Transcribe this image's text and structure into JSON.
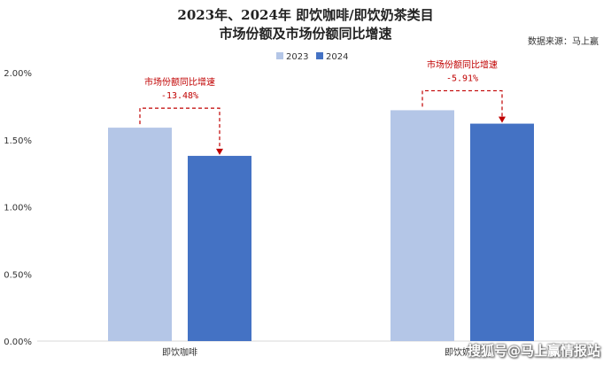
{
  "header": {
    "title_line1": "2023年、2024年 即饮咖啡/即饮奶茶类目",
    "title_line2": "市场份额及市场份额同比增速",
    "source": "数据来源：马上赢"
  },
  "watermark": "搜狐号@马上赢情报站",
  "colors": {
    "series_2023": "#b4c6e7",
    "series_2024": "#4472c4",
    "annotation": "#c00000",
    "axis": "#d9d9d9",
    "text": "#333333"
  },
  "chart_data": {
    "type": "bar",
    "title": "2023年、2024年 即饮咖啡/即饮奶茶类目 市场份额及市场份额同比增速",
    "categories": [
      "即饮咖啡",
      "即饮奶茶"
    ],
    "series": [
      {
        "name": "2023",
        "values": [
          1.59,
          1.72
        ]
      },
      {
        "name": "2024",
        "values": [
          1.38,
          1.62
        ]
      }
    ],
    "value_unit": "%",
    "ylim": [
      0,
      2.0
    ],
    "yticks": [
      "0.00%",
      "0.50%",
      "1.00%",
      "1.50%",
      "2.00%"
    ],
    "ytick_values": [
      0,
      0.5,
      1.0,
      1.5,
      2.0
    ],
    "legend_position": "top-center",
    "grid": false,
    "annotations": [
      {
        "category": "即饮咖啡",
        "label": "市场份额同比增速",
        "value": "-13.48%"
      },
      {
        "category": "即饮奶茶",
        "label": "市场份额同比增速",
        "value": "-5.91%"
      }
    ]
  }
}
